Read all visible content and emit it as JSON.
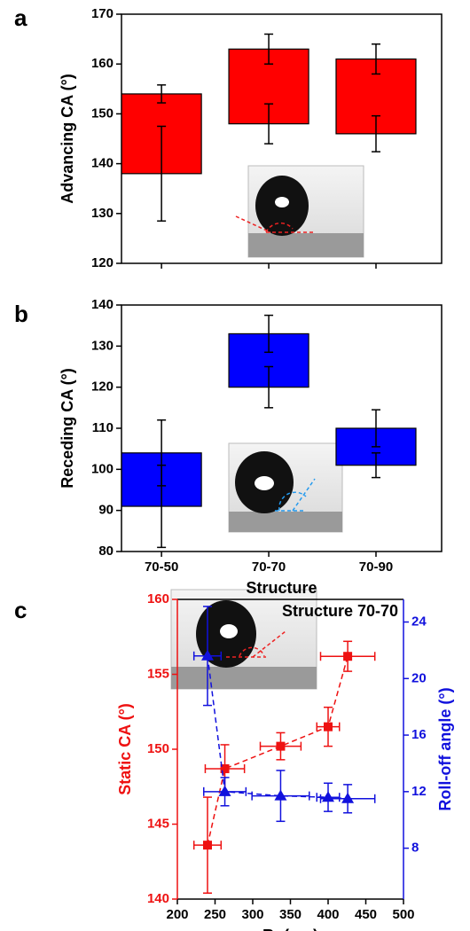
{
  "panels": [
    "a",
    "b",
    "c"
  ],
  "chart_data": [
    {
      "type": "range_bar",
      "ylabel": "Advancing CA (°)",
      "ylim": [
        120,
        170
      ],
      "yticks": [
        120,
        130,
        140,
        150,
        160,
        170
      ],
      "categories": [
        null,
        null,
        null
      ],
      "color": "#ff0000",
      "low": [
        138,
        148,
        146
      ],
      "high": [
        154,
        163,
        161
      ],
      "low_error": [
        9.5,
        4,
        3.6
      ],
      "high_error": [
        1.8,
        3,
        3
      ]
    },
    {
      "type": "range_bar",
      "ylabel": "Receding CA (°)",
      "xlabel": "Structure",
      "ylim": [
        80,
        140
      ],
      "yticks": [
        80,
        90,
        100,
        110,
        120,
        130,
        140
      ],
      "categories": [
        "70-50",
        "70-70",
        "70-90"
      ],
      "color": "#0000ff",
      "low": [
        91,
        120,
        101
      ],
      "high": [
        104,
        133,
        110
      ],
      "low_error": [
        10,
        5,
        3
      ],
      "high_error": [
        8,
        4.5,
        4.5
      ]
    },
    {
      "type": "scatter",
      "xlabel": [
        "R",
        "z",
        " (nm)"
      ],
      "ylabel": "Static CA (°)",
      "y2label": "Roll-off angle (°)",
      "annotation": "Structure 70-70",
      "xlim": [
        200,
        500
      ],
      "xticks": [
        200,
        250,
        300,
        350,
        400,
        450,
        500
      ],
      "ylim": [
        140,
        160
      ],
      "yticks": [
        140,
        145,
        150,
        155,
        160
      ],
      "y2lim": [
        4.4,
        25.6
      ],
      "y2ticks": [
        8,
        12,
        16,
        20,
        24
      ],
      "x": [
        240,
        263,
        337,
        400,
        426
      ],
      "series": [
        {
          "color": "#ee1111",
          "marker": "square",
          "linestyle": "dashed",
          "values": [
            143.6,
            148.7,
            150.2,
            151.5,
            156.2
          ],
          "y_error": [
            3.2,
            1.6,
            0.9,
            1.3,
            1.0
          ],
          "x_error": [
            18,
            26,
            27,
            15,
            36
          ]
        },
        {
          "color": "#1111dd",
          "marker": "triangle",
          "linestyle": "dashed",
          "axis": "y2",
          "values": [
            21.6,
            12.0,
            11.7,
            11.6,
            11.5
          ],
          "y_error": [
            3.5,
            1.0,
            1.8,
            1.0,
            1.0
          ],
          "x_error": [
            18,
            28,
            38,
            15,
            36
          ]
        }
      ]
    }
  ]
}
